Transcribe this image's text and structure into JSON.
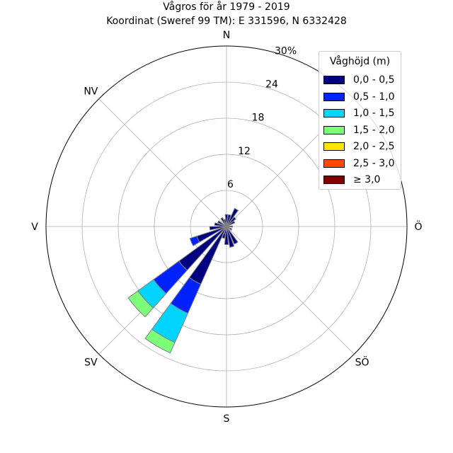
{
  "title_line1": "Vågros för år 1979 - 2019",
  "title_line2": "Koordinat (Sweref 99 TM): E 331596, N 6332428",
  "chart_data": {
    "type": "windrose",
    "unit": "%",
    "rmax": 30,
    "radial_ticks": [
      "6",
      "12",
      "18",
      "24",
      "30%"
    ],
    "radial_tick_values": [
      6,
      12,
      18,
      24,
      30
    ],
    "direction_labels": [
      "N",
      "NV",
      "V",
      "SV",
      "S",
      "SÖ",
      "Ö"
    ],
    "direction_angles_deg": [
      0,
      315,
      270,
      225,
      180,
      135,
      90
    ],
    "legend_title": "Våghöjd (m)",
    "bins": [
      {
        "label": "0,0 - 0,5",
        "color": "#000080"
      },
      {
        "label": "0,5 - 1,0",
        "color": "#0022ff"
      },
      {
        "label": "1,0 - 1,5",
        "color": "#00d4ff"
      },
      {
        "label": "1,5 - 2,0",
        "color": "#7cff79"
      },
      {
        "label": "2,0 - 2,5",
        "color": "#ffe600"
      },
      {
        "label": "2,5 - 3,0",
        "color": "#ff4a00"
      },
      {
        "label": "≥ 3,0",
        "color": "#800000"
      }
    ],
    "sector_width_deg": 12,
    "sectors": [
      {
        "direction": 0,
        "values": [
          2.0,
          0,
          0,
          0,
          0,
          0,
          0
        ]
      },
      {
        "direction": 15,
        "values": [
          2.0,
          0,
          0,
          0,
          0,
          0,
          0
        ]
      },
      {
        "direction": 30,
        "values": [
          3.3,
          0,
          0,
          0,
          0,
          0,
          0
        ]
      },
      {
        "direction": 45,
        "values": [
          2.0,
          0,
          0,
          0,
          0,
          0,
          0
        ]
      },
      {
        "direction": 60,
        "values": [
          1.5,
          0,
          0,
          0,
          0,
          0,
          0
        ]
      },
      {
        "direction": 90,
        "values": [
          1.0,
          0,
          0,
          0,
          0,
          0,
          0
        ]
      },
      {
        "direction": 120,
        "values": [
          1.0,
          0,
          0,
          0,
          0,
          0,
          0
        ]
      },
      {
        "direction": 150,
        "values": [
          3.2,
          0,
          0,
          0,
          0,
          0,
          0
        ]
      },
      {
        "direction": 165,
        "values": [
          3.5,
          0,
          0,
          0,
          0,
          0,
          0
        ]
      },
      {
        "direction": 180,
        "values": [
          3.0,
          0,
          0,
          0,
          0,
          0,
          0
        ]
      },
      {
        "direction": 195,
        "values": [
          2.0,
          0,
          0,
          0,
          0,
          0,
          0
        ]
      },
      {
        "direction": 180,
        "values": [
          0,
          0,
          0,
          0,
          0,
          0,
          0
        ]
      },
      {
        "direction": 192,
        "values": [
          1.2,
          0,
          0,
          0,
          0,
          0,
          0
        ]
      },
      {
        "direction": 210,
        "values": [
          10.5,
          5.3,
          5.3,
          1.9,
          0,
          0,
          0
        ]
      },
      {
        "direction": 228,
        "values": [
          9.8,
          5.2,
          3.2,
          2.0,
          0,
          0,
          0
        ]
      },
      {
        "direction": 246,
        "values": [
          5.2,
          1.2,
          0,
          0,
          0,
          0,
          0
        ]
      },
      {
        "direction": 264,
        "values": [
          2.8,
          0,
          0,
          0,
          0,
          0,
          0
        ]
      },
      {
        "direction": 282,
        "values": [
          2.0,
          0,
          0,
          0,
          0,
          0,
          0
        ]
      },
      {
        "direction": 300,
        "values": [
          1.6,
          0,
          0,
          0,
          0,
          0,
          0
        ]
      },
      {
        "direction": 330,
        "values": [
          1.6,
          0,
          0,
          0,
          0,
          0,
          0
        ]
      },
      {
        "direction": 345,
        "values": [
          1.2,
          0,
          0,
          0,
          0,
          0,
          0
        ]
      }
    ]
  }
}
